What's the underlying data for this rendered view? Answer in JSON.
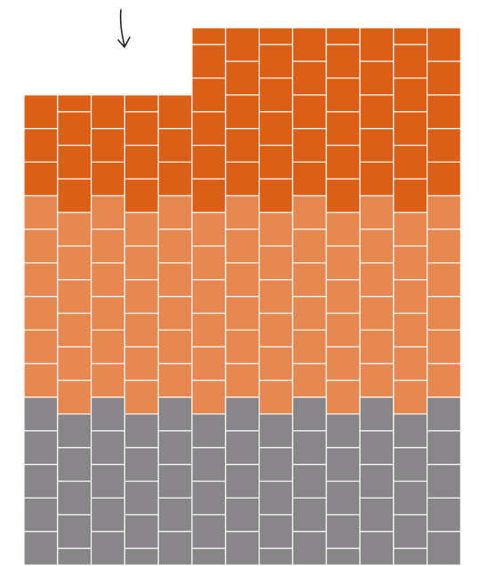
{
  "colors": {
    "dark_orange": "#DC5F17",
    "light_orange": "#E6884F",
    "gray": "#888689",
    "mortar": "#ffffff",
    "arrow": "#222222"
  },
  "columns": [
    {
      "id": 1,
      "gray_rows": 5,
      "light_rows": 6,
      "dark_rows": 3
    },
    {
      "id": 2,
      "gray_rows": 5,
      "light_rows": 6,
      "dark_rows": 3
    },
    {
      "id": 3,
      "gray_rows": 5,
      "light_rows": 6,
      "dark_rows": 3
    },
    {
      "id": 4,
      "gray_rows": 5,
      "light_rows": 6,
      "dark_rows": 3
    },
    {
      "id": 5,
      "gray_rows": 5,
      "light_rows": 6,
      "dark_rows": 3
    },
    {
      "id": 6,
      "gray_rows": 5,
      "light_rows": 6,
      "dark_rows": 5
    },
    {
      "id": 7,
      "gray_rows": 5,
      "light_rows": 6,
      "dark_rows": 5
    },
    {
      "id": 8,
      "gray_rows": 5,
      "light_rows": 6,
      "dark_rows": 5
    },
    {
      "id": 9,
      "gray_rows": 5,
      "light_rows": 6,
      "dark_rows": 5
    },
    {
      "id": 10,
      "gray_rows": 5,
      "light_rows": 6,
      "dark_rows": 5
    },
    {
      "id": 11,
      "gray_rows": 5,
      "light_rows": 6,
      "dark_rows": 5
    },
    {
      "id": 12,
      "gray_rows": 5,
      "light_rows": 6,
      "dark_rows": 5
    },
    {
      "id": 13,
      "gray_rows": 5,
      "light_rows": 6,
      "dark_rows": 5
    }
  ],
  "arrow_icon": "down-arrow-icon"
}
